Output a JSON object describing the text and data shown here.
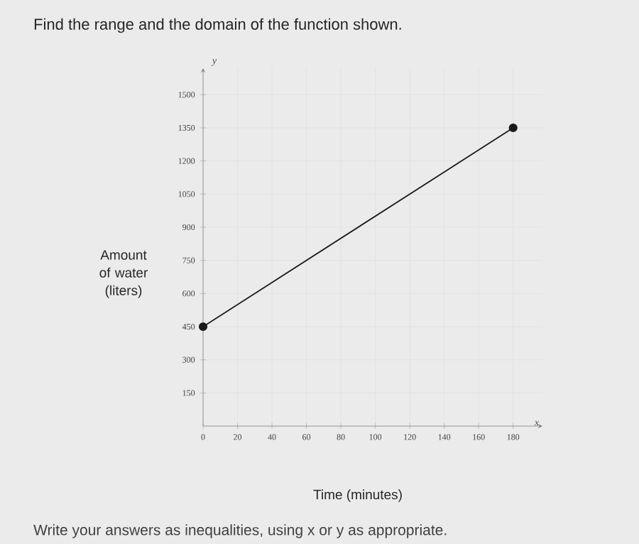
{
  "chart_data": {
    "type": "line",
    "title": "Find the range and the domain of the function shown.",
    "xlabel": "Time (minutes)",
    "ylabel": "Amount of water (liters)",
    "annotations": [
      "x",
      "y",
      "Write your answers as inequalities, using x or y as appropriate."
    ],
    "x": [
      0,
      180
    ],
    "series": [
      {
        "color": "#1a1a1a",
        "values": [
          450,
          1350
        ]
      }
    ],
    "marker": "circle",
    "line_style": "solid",
    "grid": true,
    "xlim": [
      0,
      197
    ],
    "ylim": [
      0,
      1620
    ],
    "xticks": [
      0,
      20,
      40,
      60,
      80,
      100,
      120,
      140,
      160,
      180
    ],
    "yticks": [
      150,
      300,
      450,
      600,
      750,
      900,
      1050,
      1200,
      1350,
      1500
    ]
  }
}
